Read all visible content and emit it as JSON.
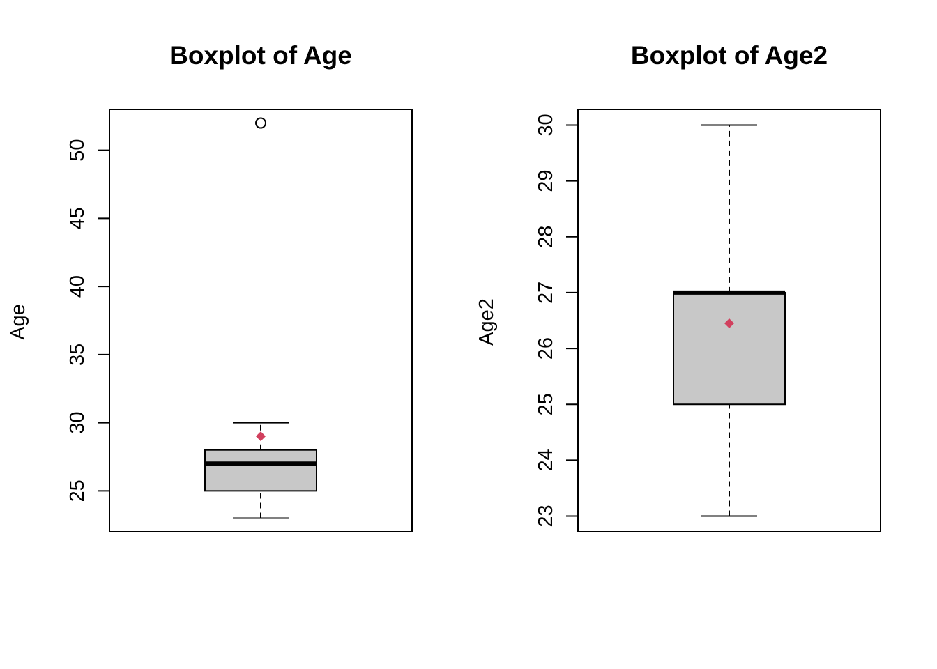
{
  "chart_data": [
    {
      "type": "boxplot",
      "title": "Boxplot of Age",
      "ylabel": "Age",
      "xlabel": "",
      "ylim": [
        22,
        53
      ],
      "yticks": [
        25,
        30,
        35,
        40,
        45,
        50
      ],
      "stats": {
        "whisker_low": 23,
        "q1": 25,
        "median": 27,
        "q3": 28,
        "whisker_high": 30,
        "mean": 29
      },
      "outliers": [
        52
      ],
      "colors": {
        "box_fill": "#c8c8c8",
        "mean_marker": "#d1405e",
        "stroke": "#000000"
      }
    },
    {
      "type": "boxplot",
      "title": "Boxplot of Age2",
      "ylabel": "Age2",
      "xlabel": "",
      "ylim": [
        22.72,
        30.28
      ],
      "yticks": [
        23,
        24,
        25,
        26,
        27,
        28,
        29,
        30
      ],
      "stats": {
        "whisker_low": 23,
        "q1": 25,
        "median": 27,
        "q3": 27,
        "whisker_high": 30,
        "mean": 26.45
      },
      "outliers": [],
      "colors": {
        "box_fill": "#c8c8c8",
        "mean_marker": "#d1405e",
        "stroke": "#000000"
      }
    }
  ]
}
